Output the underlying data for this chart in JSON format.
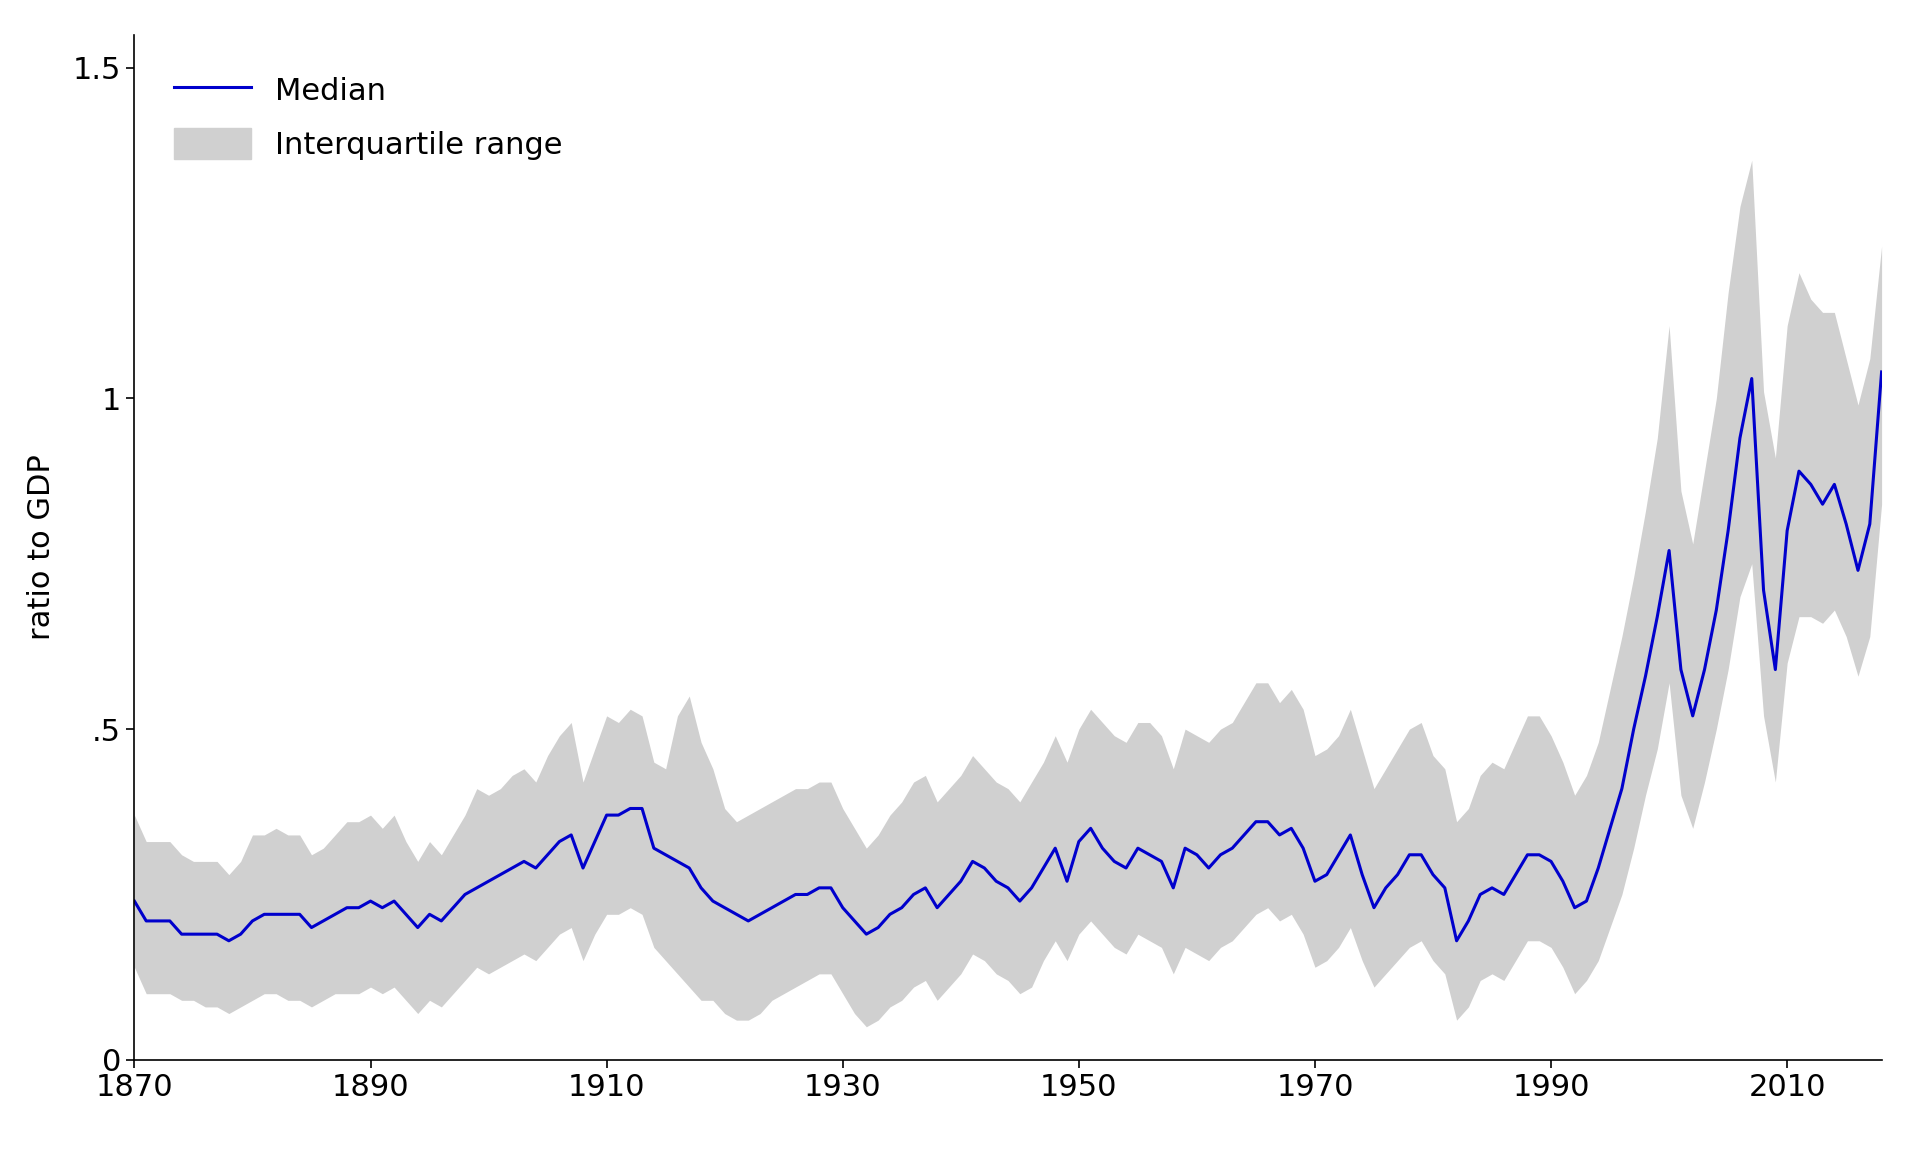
{
  "years": [
    1870,
    1871,
    1872,
    1873,
    1874,
    1875,
    1876,
    1877,
    1878,
    1879,
    1880,
    1881,
    1882,
    1883,
    1884,
    1885,
    1886,
    1887,
    1888,
    1889,
    1890,
    1891,
    1892,
    1893,
    1894,
    1895,
    1896,
    1897,
    1898,
    1899,
    1900,
    1901,
    1902,
    1903,
    1904,
    1905,
    1906,
    1907,
    1908,
    1909,
    1910,
    1911,
    1912,
    1913,
    1914,
    1915,
    1916,
    1917,
    1918,
    1919,
    1920,
    1921,
    1922,
    1923,
    1924,
    1925,
    1926,
    1927,
    1928,
    1929,
    1930,
    1931,
    1932,
    1933,
    1934,
    1935,
    1936,
    1937,
    1938,
    1939,
    1940,
    1941,
    1942,
    1943,
    1944,
    1945,
    1946,
    1947,
    1948,
    1949,
    1950,
    1951,
    1952,
    1953,
    1954,
    1955,
    1956,
    1957,
    1958,
    1959,
    1960,
    1961,
    1962,
    1963,
    1964,
    1965,
    1966,
    1967,
    1968,
    1969,
    1970,
    1971,
    1972,
    1973,
    1974,
    1975,
    1976,
    1977,
    1978,
    1979,
    1980,
    1981,
    1982,
    1983,
    1984,
    1985,
    1986,
    1987,
    1988,
    1989,
    1990,
    1991,
    1992,
    1993,
    1994,
    1995,
    1996,
    1997,
    1998,
    1999,
    2000,
    2001,
    2002,
    2003,
    2004,
    2005,
    2006,
    2007,
    2008,
    2009,
    2010,
    2011,
    2012,
    2013,
    2014,
    2015,
    2016,
    2017,
    2018
  ],
  "median": [
    0.24,
    0.21,
    0.21,
    0.21,
    0.19,
    0.19,
    0.19,
    0.19,
    0.18,
    0.19,
    0.21,
    0.22,
    0.22,
    0.22,
    0.22,
    0.2,
    0.21,
    0.22,
    0.23,
    0.23,
    0.24,
    0.23,
    0.24,
    0.22,
    0.2,
    0.22,
    0.21,
    0.23,
    0.25,
    0.26,
    0.27,
    0.28,
    0.29,
    0.3,
    0.29,
    0.31,
    0.33,
    0.34,
    0.29,
    0.33,
    0.37,
    0.37,
    0.38,
    0.38,
    0.32,
    0.31,
    0.3,
    0.29,
    0.26,
    0.24,
    0.23,
    0.22,
    0.21,
    0.22,
    0.23,
    0.24,
    0.25,
    0.25,
    0.26,
    0.26,
    0.23,
    0.21,
    0.19,
    0.2,
    0.22,
    0.23,
    0.25,
    0.26,
    0.23,
    0.25,
    0.27,
    0.3,
    0.29,
    0.27,
    0.26,
    0.24,
    0.26,
    0.29,
    0.32,
    0.27,
    0.33,
    0.35,
    0.32,
    0.3,
    0.29,
    0.32,
    0.31,
    0.3,
    0.26,
    0.32,
    0.31,
    0.29,
    0.31,
    0.32,
    0.34,
    0.36,
    0.36,
    0.34,
    0.35,
    0.32,
    0.27,
    0.28,
    0.31,
    0.34,
    0.28,
    0.23,
    0.26,
    0.28,
    0.31,
    0.31,
    0.28,
    0.26,
    0.18,
    0.21,
    0.25,
    0.26,
    0.25,
    0.28,
    0.31,
    0.31,
    0.3,
    0.27,
    0.23,
    0.24,
    0.29,
    0.35,
    0.41,
    0.5,
    0.58,
    0.67,
    0.77,
    0.59,
    0.52,
    0.59,
    0.68,
    0.8,
    0.94,
    1.03,
    0.71,
    0.59,
    0.8,
    0.89,
    0.87,
    0.84,
    0.87,
    0.81,
    0.74,
    0.81,
    1.04
  ],
  "q1": [
    0.14,
    0.1,
    0.1,
    0.1,
    0.09,
    0.09,
    0.08,
    0.08,
    0.07,
    0.08,
    0.09,
    0.1,
    0.1,
    0.09,
    0.09,
    0.08,
    0.09,
    0.1,
    0.1,
    0.1,
    0.11,
    0.1,
    0.11,
    0.09,
    0.07,
    0.09,
    0.08,
    0.1,
    0.12,
    0.14,
    0.13,
    0.14,
    0.15,
    0.16,
    0.15,
    0.17,
    0.19,
    0.2,
    0.15,
    0.19,
    0.22,
    0.22,
    0.23,
    0.22,
    0.17,
    0.15,
    0.13,
    0.11,
    0.09,
    0.09,
    0.07,
    0.06,
    0.06,
    0.07,
    0.09,
    0.1,
    0.11,
    0.12,
    0.13,
    0.13,
    0.1,
    0.07,
    0.05,
    0.06,
    0.08,
    0.09,
    0.11,
    0.12,
    0.09,
    0.11,
    0.13,
    0.16,
    0.15,
    0.13,
    0.12,
    0.1,
    0.11,
    0.15,
    0.18,
    0.15,
    0.19,
    0.21,
    0.19,
    0.17,
    0.16,
    0.19,
    0.18,
    0.17,
    0.13,
    0.17,
    0.16,
    0.15,
    0.17,
    0.18,
    0.2,
    0.22,
    0.23,
    0.21,
    0.22,
    0.19,
    0.14,
    0.15,
    0.17,
    0.2,
    0.15,
    0.11,
    0.13,
    0.15,
    0.17,
    0.18,
    0.15,
    0.13,
    0.06,
    0.08,
    0.12,
    0.13,
    0.12,
    0.15,
    0.18,
    0.18,
    0.17,
    0.14,
    0.1,
    0.12,
    0.15,
    0.2,
    0.25,
    0.32,
    0.4,
    0.47,
    0.57,
    0.4,
    0.35,
    0.42,
    0.5,
    0.59,
    0.7,
    0.75,
    0.52,
    0.42,
    0.6,
    0.67,
    0.67,
    0.66,
    0.68,
    0.64,
    0.58,
    0.64,
    0.84
  ],
  "q3": [
    0.37,
    0.33,
    0.33,
    0.33,
    0.31,
    0.3,
    0.3,
    0.3,
    0.28,
    0.3,
    0.34,
    0.34,
    0.35,
    0.34,
    0.34,
    0.31,
    0.32,
    0.34,
    0.36,
    0.36,
    0.37,
    0.35,
    0.37,
    0.33,
    0.3,
    0.33,
    0.31,
    0.34,
    0.37,
    0.41,
    0.4,
    0.41,
    0.43,
    0.44,
    0.42,
    0.46,
    0.49,
    0.51,
    0.42,
    0.47,
    0.52,
    0.51,
    0.53,
    0.52,
    0.45,
    0.44,
    0.52,
    0.55,
    0.48,
    0.44,
    0.38,
    0.36,
    0.37,
    0.38,
    0.39,
    0.4,
    0.41,
    0.41,
    0.42,
    0.42,
    0.38,
    0.35,
    0.32,
    0.34,
    0.37,
    0.39,
    0.42,
    0.43,
    0.39,
    0.41,
    0.43,
    0.46,
    0.44,
    0.42,
    0.41,
    0.39,
    0.42,
    0.45,
    0.49,
    0.45,
    0.5,
    0.53,
    0.51,
    0.49,
    0.48,
    0.51,
    0.51,
    0.49,
    0.44,
    0.5,
    0.49,
    0.48,
    0.5,
    0.51,
    0.54,
    0.57,
    0.57,
    0.54,
    0.56,
    0.53,
    0.46,
    0.47,
    0.49,
    0.53,
    0.47,
    0.41,
    0.44,
    0.47,
    0.5,
    0.51,
    0.46,
    0.44,
    0.36,
    0.38,
    0.43,
    0.45,
    0.44,
    0.48,
    0.52,
    0.52,
    0.49,
    0.45,
    0.4,
    0.43,
    0.48,
    0.56,
    0.64,
    0.73,
    0.83,
    0.94,
    1.11,
    0.86,
    0.78,
    0.89,
    1.0,
    1.16,
    1.29,
    1.36,
    1.01,
    0.91,
    1.11,
    1.19,
    1.15,
    1.13,
    1.13,
    1.06,
    0.99,
    1.06,
    1.23
  ],
  "ylabel": "ratio to GDP",
  "legend_median": "Median",
  "legend_iqr": "Interquartile range",
  "xlim": [
    1870,
    2018
  ],
  "ylim": [
    0,
    1.55
  ],
  "xticks": [
    1870,
    1890,
    1910,
    1930,
    1950,
    1970,
    1990,
    2010
  ],
  "yticks": [
    0,
    0.5,
    1.0,
    1.5
  ],
  "ytick_labels": [
    "0",
    ".5",
    "1",
    "1.5"
  ],
  "median_color": "#0000cc",
  "shade_color": "#d0d0d0",
  "background_color": "#ffffff",
  "line_width": 2.2,
  "font_size": 22
}
